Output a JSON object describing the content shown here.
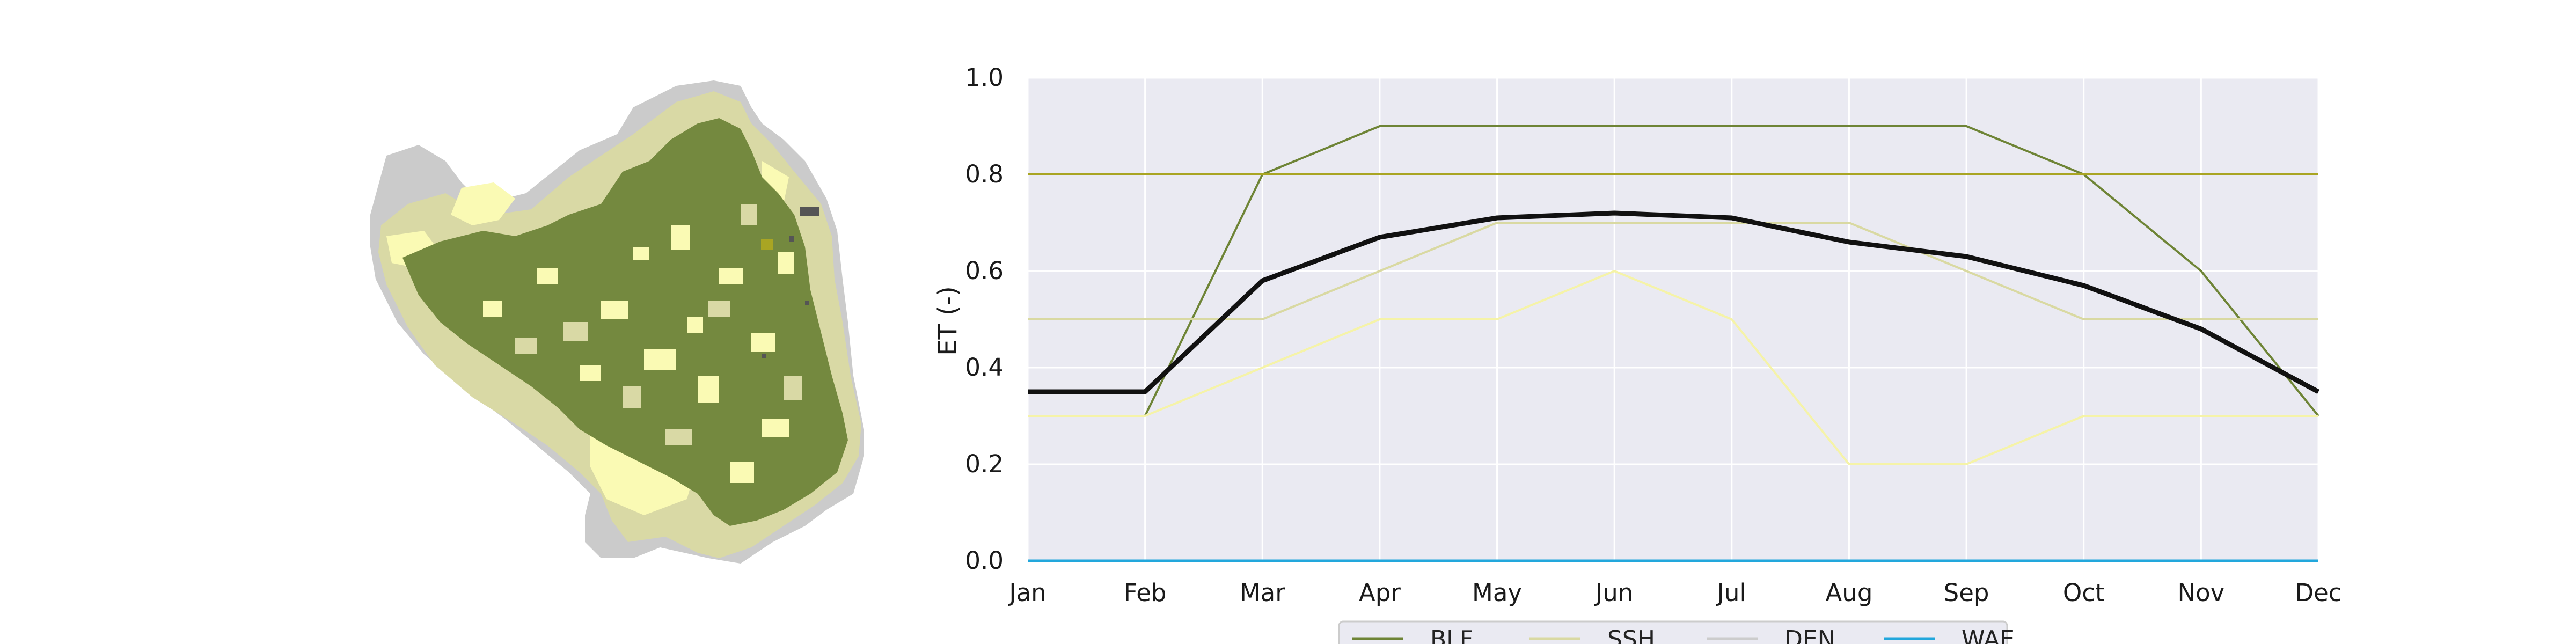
{
  "chart_data": {
    "type": "line",
    "xlabel": "",
    "ylabel": "ET (-)",
    "ylim": [
      0.0,
      1.0
    ],
    "yticks": [
      "0.0",
      "0.2",
      "0.4",
      "0.6",
      "0.8",
      "1.0"
    ],
    "categories": [
      "Jan",
      "Feb",
      "Mar",
      "Apr",
      "May",
      "Jun",
      "Jul",
      "Aug",
      "Sep",
      "Oct",
      "Nov",
      "Dec"
    ],
    "grid": true,
    "legend_placement": "bottom",
    "series": [
      {
        "values": [
          null,
          0.3,
          0.8,
          0.9,
          0.9,
          0.9,
          0.9,
          0.9,
          0.9,
          0.8,
          0.6,
          0.3
        ],
        "color": "#6e8436",
        "width": 4
      },
      {
        "values": [
          0.5,
          0.5,
          0.5,
          0.6,
          0.7,
          0.7,
          0.7,
          0.7,
          0.6,
          0.5,
          0.5,
          0.5
        ],
        "color": "#d9d9a2",
        "width": 4
      },
      {
        "values": [
          0.3,
          0.3,
          0.4,
          0.5,
          0.5,
          0.6,
          0.5,
          0.2,
          0.2,
          0.3,
          0.3,
          0.3
        ],
        "color": "#f5f3a8",
        "width": 4
      },
      {
        "values": [
          0.8,
          0.8,
          0.8,
          0.8,
          0.8,
          0.8,
          0.8,
          0.8,
          0.8,
          0.8,
          0.8,
          0.8
        ],
        "color": "#a9a523",
        "width": 4
      },
      {
        "values": [
          0,
          0,
          0,
          0,
          0,
          0,
          0,
          0,
          0,
          0,
          0,
          0
        ],
        "color": "#22a7dc",
        "width": 5
      },
      {
        "values": [
          0.35,
          0.35,
          0.58,
          0.67,
          0.71,
          0.72,
          0.71,
          0.66,
          0.63,
          0.57,
          0.48,
          0.35
        ],
        "color": "#111111",
        "width": 9
      }
    ],
    "legend": [
      {
        "name": "BLF",
        "color": "#6e8436"
      },
      {
        "name": "SSH",
        "color": "#d9d9a2"
      },
      {
        "name": "DEN",
        "color": "#cccccc"
      },
      {
        "name": "WAE",
        "color": "#22a7dc"
      }
    ]
  },
  "map": {
    "colors": {
      "forest": "#74893f",
      "shrub": "#d9d9a5",
      "light": "#fafab4",
      "bare": "#cbcbcb",
      "dark": "#555555"
    }
  }
}
